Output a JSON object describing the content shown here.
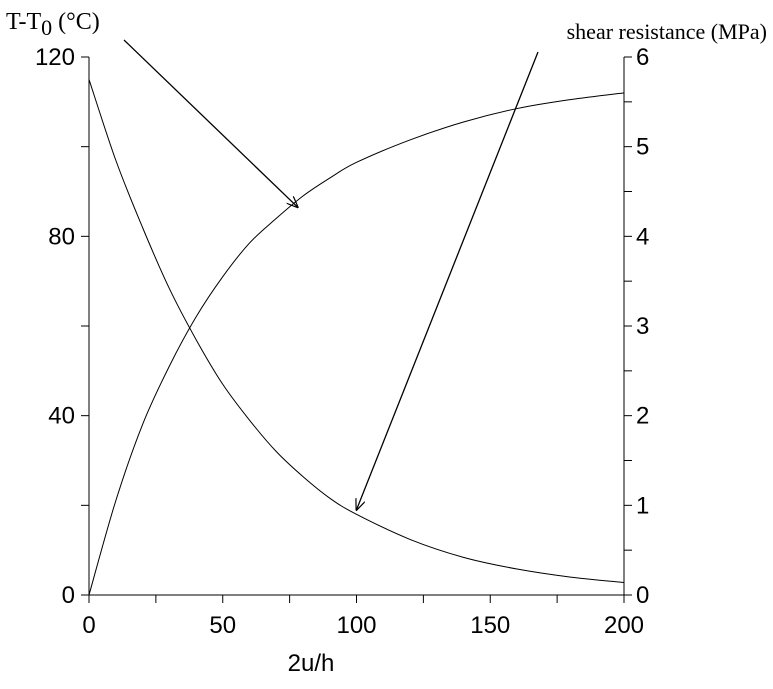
{
  "chart_data": {
    "type": "line",
    "xlabel": "2u/h",
    "ylabel_left": {
      "main": "T-T",
      "subscript": "0",
      "unit": " (°C)"
    },
    "ylabel_right": "shear resistance (MPa)",
    "xlim": [
      0,
      200
    ],
    "ylim_left": [
      0,
      120
    ],
    "ylim_right": [
      0,
      6
    ],
    "grid": false,
    "x_ticks": [
      "0",
      "50",
      "100",
      "150",
      "200"
    ],
    "y_left_ticks": [
      "0",
      "40",
      "80",
      "120"
    ],
    "y_right_ticks": [
      "0",
      "1",
      "2",
      "3",
      "4",
      "5",
      "6"
    ],
    "series": [
      {
        "axis": "left",
        "x": [
          0,
          10,
          20,
          30,
          40,
          50,
          60,
          70,
          80,
          90,
          100,
          120,
          140,
          160,
          180,
          200
        ],
        "y": [
          0,
          21,
          38,
          51,
          62,
          71,
          78.5,
          84,
          89,
          93,
          96.5,
          101.5,
          105.5,
          108.5,
          110.5,
          112
        ]
      },
      {
        "axis": "right",
        "x": [
          0,
          10,
          20,
          30,
          40,
          50,
          60,
          70,
          80,
          90,
          100,
          120,
          140,
          160,
          180,
          200
        ],
        "y": [
          5.75,
          4.85,
          4.1,
          3.42,
          2.85,
          2.35,
          1.95,
          1.6,
          1.32,
          1.08,
          0.9,
          0.62,
          0.42,
          0.29,
          0.2,
          0.14
        ]
      }
    ],
    "annotations": [
      {
        "type": "arrow",
        "from_label": "left_ylabel",
        "to_series": 0,
        "to": [
          78,
          86.5
        ]
      },
      {
        "type": "arrow",
        "from_label": "right_ylabel",
        "to_series": 1,
        "to": [
          100,
          0.95
        ]
      }
    ]
  }
}
